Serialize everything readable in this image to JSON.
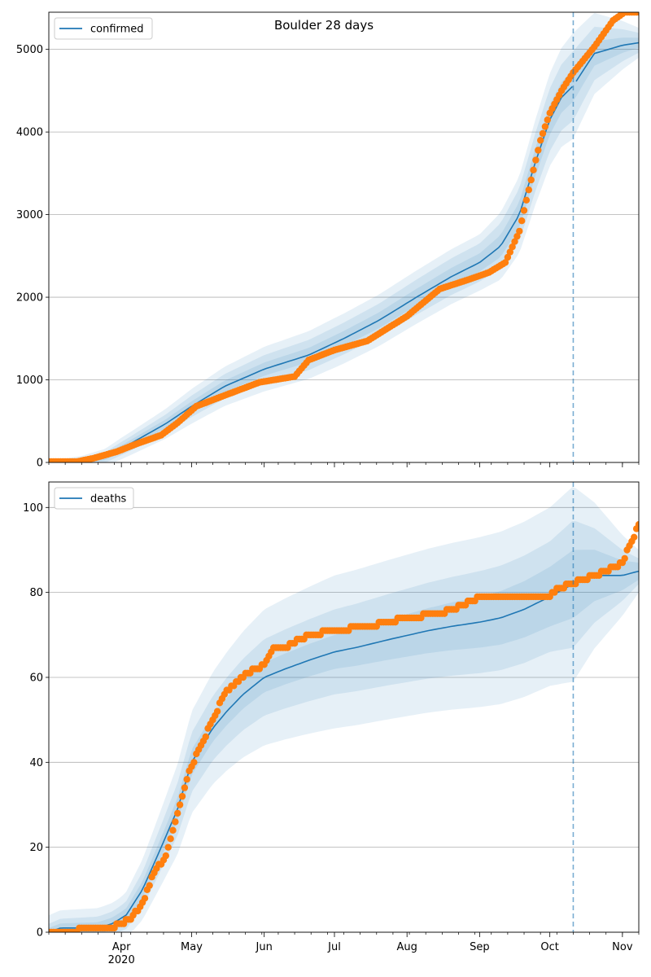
{
  "colors": {
    "model": "#1f77b4",
    "observed": "#ff7f0e",
    "band": "#1f77b4",
    "grid": "#b0b0b0",
    "cutoff": "#1f77b4"
  },
  "chart_data": [
    {
      "type": "line",
      "title": "Boulder 28 days",
      "legend": [
        "confirmed"
      ],
      "legend_position": "top-left",
      "grid": "horizontal",
      "x_range": [
        "2020-03-01",
        "2020-11-08"
      ],
      "ylim": [
        0,
        5450
      ],
      "y_ticks": [
        0,
        1000,
        2000,
        3000,
        4000,
        5000
      ],
      "cutoff_date": "2020-10-11",
      "series": [
        {
          "name": "confirmed",
          "dates": [
            "2020-03-01",
            "2020-03-15",
            "2020-03-25",
            "2020-04-05",
            "2020-04-20",
            "2020-05-01",
            "2020-05-15",
            "2020-06-01",
            "2020-06-20",
            "2020-07-05",
            "2020-07-20",
            "2020-08-05",
            "2020-08-20",
            "2020-09-01",
            "2020-09-10",
            "2020-09-18",
            "2020-09-25",
            "2020-10-01",
            "2020-10-06",
            "2020-10-11",
            "2020-10-20",
            "2020-11-01",
            "2020-11-08"
          ],
          "values": [
            0,
            10,
            60,
            230,
            470,
            680,
            920,
            1130,
            1300,
            1500,
            1720,
            2000,
            2250,
            2420,
            2620,
            3000,
            3650,
            4150,
            4420,
            4560,
            4950,
            5050,
            5080
          ]
        },
        {
          "name": "observed",
          "dates": [
            "2020-03-01",
            "2020-03-13",
            "2020-03-20",
            "2020-03-30",
            "2020-04-08",
            "2020-04-18",
            "2020-04-25",
            "2020-05-03",
            "2020-05-15",
            "2020-05-30",
            "2020-06-14",
            "2020-06-20",
            "2020-07-01",
            "2020-07-15",
            "2020-08-01",
            "2020-08-15",
            "2020-08-28",
            "2020-09-05",
            "2020-09-12",
            "2020-09-18",
            "2020-09-22",
            "2020-09-27",
            "2020-10-01",
            "2020-10-06",
            "2020-10-11",
            "2020-10-20",
            "2020-10-28",
            "2020-11-02"
          ],
          "values": [
            10,
            10,
            50,
            130,
            230,
            330,
            480,
            680,
            810,
            970,
            1040,
            1240,
            1360,
            1470,
            1770,
            2100,
            2220,
            2300,
            2420,
            2800,
            3300,
            3900,
            4230,
            4500,
            4720,
            5030,
            5350,
            5450
          ]
        }
      ],
      "band_widths": [
        {
          "dates": [
            "2020-03-01",
            "2020-04-01",
            "2020-05-01",
            "2020-06-01",
            "2020-07-01",
            "2020-08-01",
            "2020-09-01",
            "2020-09-20",
            "2020-10-01",
            "2020-10-11",
            "2020-11-08"
          ],
          "values": [
            8,
            40,
            60,
            80,
            90,
            100,
            110,
            160,
            180,
            190,
            60
          ]
        },
        {
          "dates": [
            "2020-03-01",
            "2020-04-01",
            "2020-05-01",
            "2020-06-01",
            "2020-07-01",
            "2020-08-01",
            "2020-09-01",
            "2020-09-20",
            "2020-10-01",
            "2020-10-11",
            "2020-11-08"
          ],
          "values": [
            12,
            80,
            130,
            170,
            190,
            210,
            230,
            330,
            380,
            420,
            120
          ]
        },
        {
          "dates": [
            "2020-03-01",
            "2020-04-01",
            "2020-05-01",
            "2020-06-01",
            "2020-07-01",
            "2020-08-01",
            "2020-09-01",
            "2020-09-20",
            "2020-10-01",
            "2020-10-11",
            "2020-11-08"
          ],
          "values": [
            18,
            130,
            210,
            270,
            300,
            320,
            340,
            480,
            560,
            640,
            180
          ]
        }
      ]
    },
    {
      "type": "line",
      "title": "",
      "legend": [
        "deaths"
      ],
      "legend_position": "top-left",
      "grid": "horizontal",
      "x_range": [
        "2020-03-01",
        "2020-11-08"
      ],
      "ylim": [
        0,
        106
      ],
      "y_ticks": [
        0,
        20,
        40,
        60,
        80,
        100
      ],
      "cutoff_date": "2020-10-11",
      "series": [
        {
          "name": "deaths",
          "dates": [
            "2020-03-01",
            "2020-03-06",
            "2020-03-22",
            "2020-03-28",
            "2020-04-03",
            "2020-04-10",
            "2020-04-18",
            "2020-04-25",
            "2020-05-01",
            "2020-05-10",
            "2020-05-16",
            "2020-05-23",
            "2020-06-01",
            "2020-06-10",
            "2020-06-20",
            "2020-07-01",
            "2020-07-10",
            "2020-07-25",
            "2020-08-10",
            "2020-08-20",
            "2020-09-01",
            "2020-09-10",
            "2020-09-20",
            "2020-10-01",
            "2020-10-11",
            "2020-10-20",
            "2020-11-01",
            "2020-11-08"
          ],
          "values": [
            0,
            1,
            1,
            2,
            4,
            10,
            20,
            29,
            40,
            48,
            52,
            56,
            60,
            62,
            64,
            66,
            67,
            69,
            71,
            72,
            73,
            74,
            76,
            79,
            82,
            84,
            84,
            85
          ]
        },
        {
          "name": "observed",
          "dates": [
            "2020-03-01",
            "2020-03-27",
            "2020-04-01",
            "2020-04-05",
            "2020-04-10",
            "2020-04-15",
            "2020-04-20",
            "2020-04-25",
            "2020-04-30",
            "2020-05-05",
            "2020-05-10",
            "2020-05-15",
            "2020-05-20",
            "2020-05-25",
            "2020-06-01",
            "2020-06-05",
            "2020-06-10",
            "2020-06-20",
            "2020-07-01",
            "2020-07-15",
            "2020-08-01",
            "2020-08-15",
            "2020-08-25",
            "2020-09-01",
            "2020-09-20",
            "2020-10-01",
            "2020-10-05",
            "2020-10-11",
            "2020-10-15",
            "2020-10-25",
            "2020-11-01",
            "2020-11-05",
            "2020-11-08"
          ],
          "values": [
            0,
            1,
            2,
            3,
            7,
            14,
            18,
            28,
            38,
            44,
            50,
            56,
            59,
            61,
            63,
            67,
            67,
            70,
            71,
            72,
            74,
            75,
            77,
            79,
            79,
            79,
            81,
            82,
            83,
            85,
            87,
            92,
            96
          ]
        }
      ],
      "band_widths": [
        {
          "dates": [
            "2020-03-01",
            "2020-04-01",
            "2020-05-01",
            "2020-06-01",
            "2020-07-01",
            "2020-08-01",
            "2020-09-01",
            "2020-10-01",
            "2020-10-11",
            "2020-11-08"
          ],
          "values": [
            1,
            1.5,
            3,
            3.5,
            4,
            5,
            6,
            7,
            8,
            2
          ]
        },
        {
          "dates": [
            "2020-03-01",
            "2020-04-01",
            "2020-05-01",
            "2020-06-01",
            "2020-07-01",
            "2020-08-01",
            "2020-09-01",
            "2020-10-01",
            "2020-10-11",
            "2020-11-08"
          ],
          "values": [
            2,
            3,
            7,
            9,
            10,
            11,
            12,
            13,
            15,
            3
          ]
        },
        {
          "dates": [
            "2020-03-01",
            "2020-04-01",
            "2020-05-01",
            "2020-06-01",
            "2020-07-01",
            "2020-08-01",
            "2020-09-01",
            "2020-10-01",
            "2020-10-11",
            "2020-11-08"
          ],
          "values": [
            4,
            5,
            12,
            16,
            18,
            19,
            20,
            21,
            23,
            5
          ]
        }
      ]
    }
  ],
  "x_tick_labels": [
    {
      "date": "2020-04-01",
      "label": "Apr",
      "sublabel": "2020"
    },
    {
      "date": "2020-05-01",
      "label": "May",
      "sublabel": ""
    },
    {
      "date": "2020-06-01",
      "label": "Jun",
      "sublabel": ""
    },
    {
      "date": "2020-07-01",
      "label": "Jul",
      "sublabel": ""
    },
    {
      "date": "2020-08-01",
      "label": "Aug",
      "sublabel": ""
    },
    {
      "date": "2020-09-01",
      "label": "Sep",
      "sublabel": ""
    },
    {
      "date": "2020-10-01",
      "label": "Oct",
      "sublabel": ""
    },
    {
      "date": "2020-11-01",
      "label": "Nov",
      "sublabel": ""
    }
  ]
}
